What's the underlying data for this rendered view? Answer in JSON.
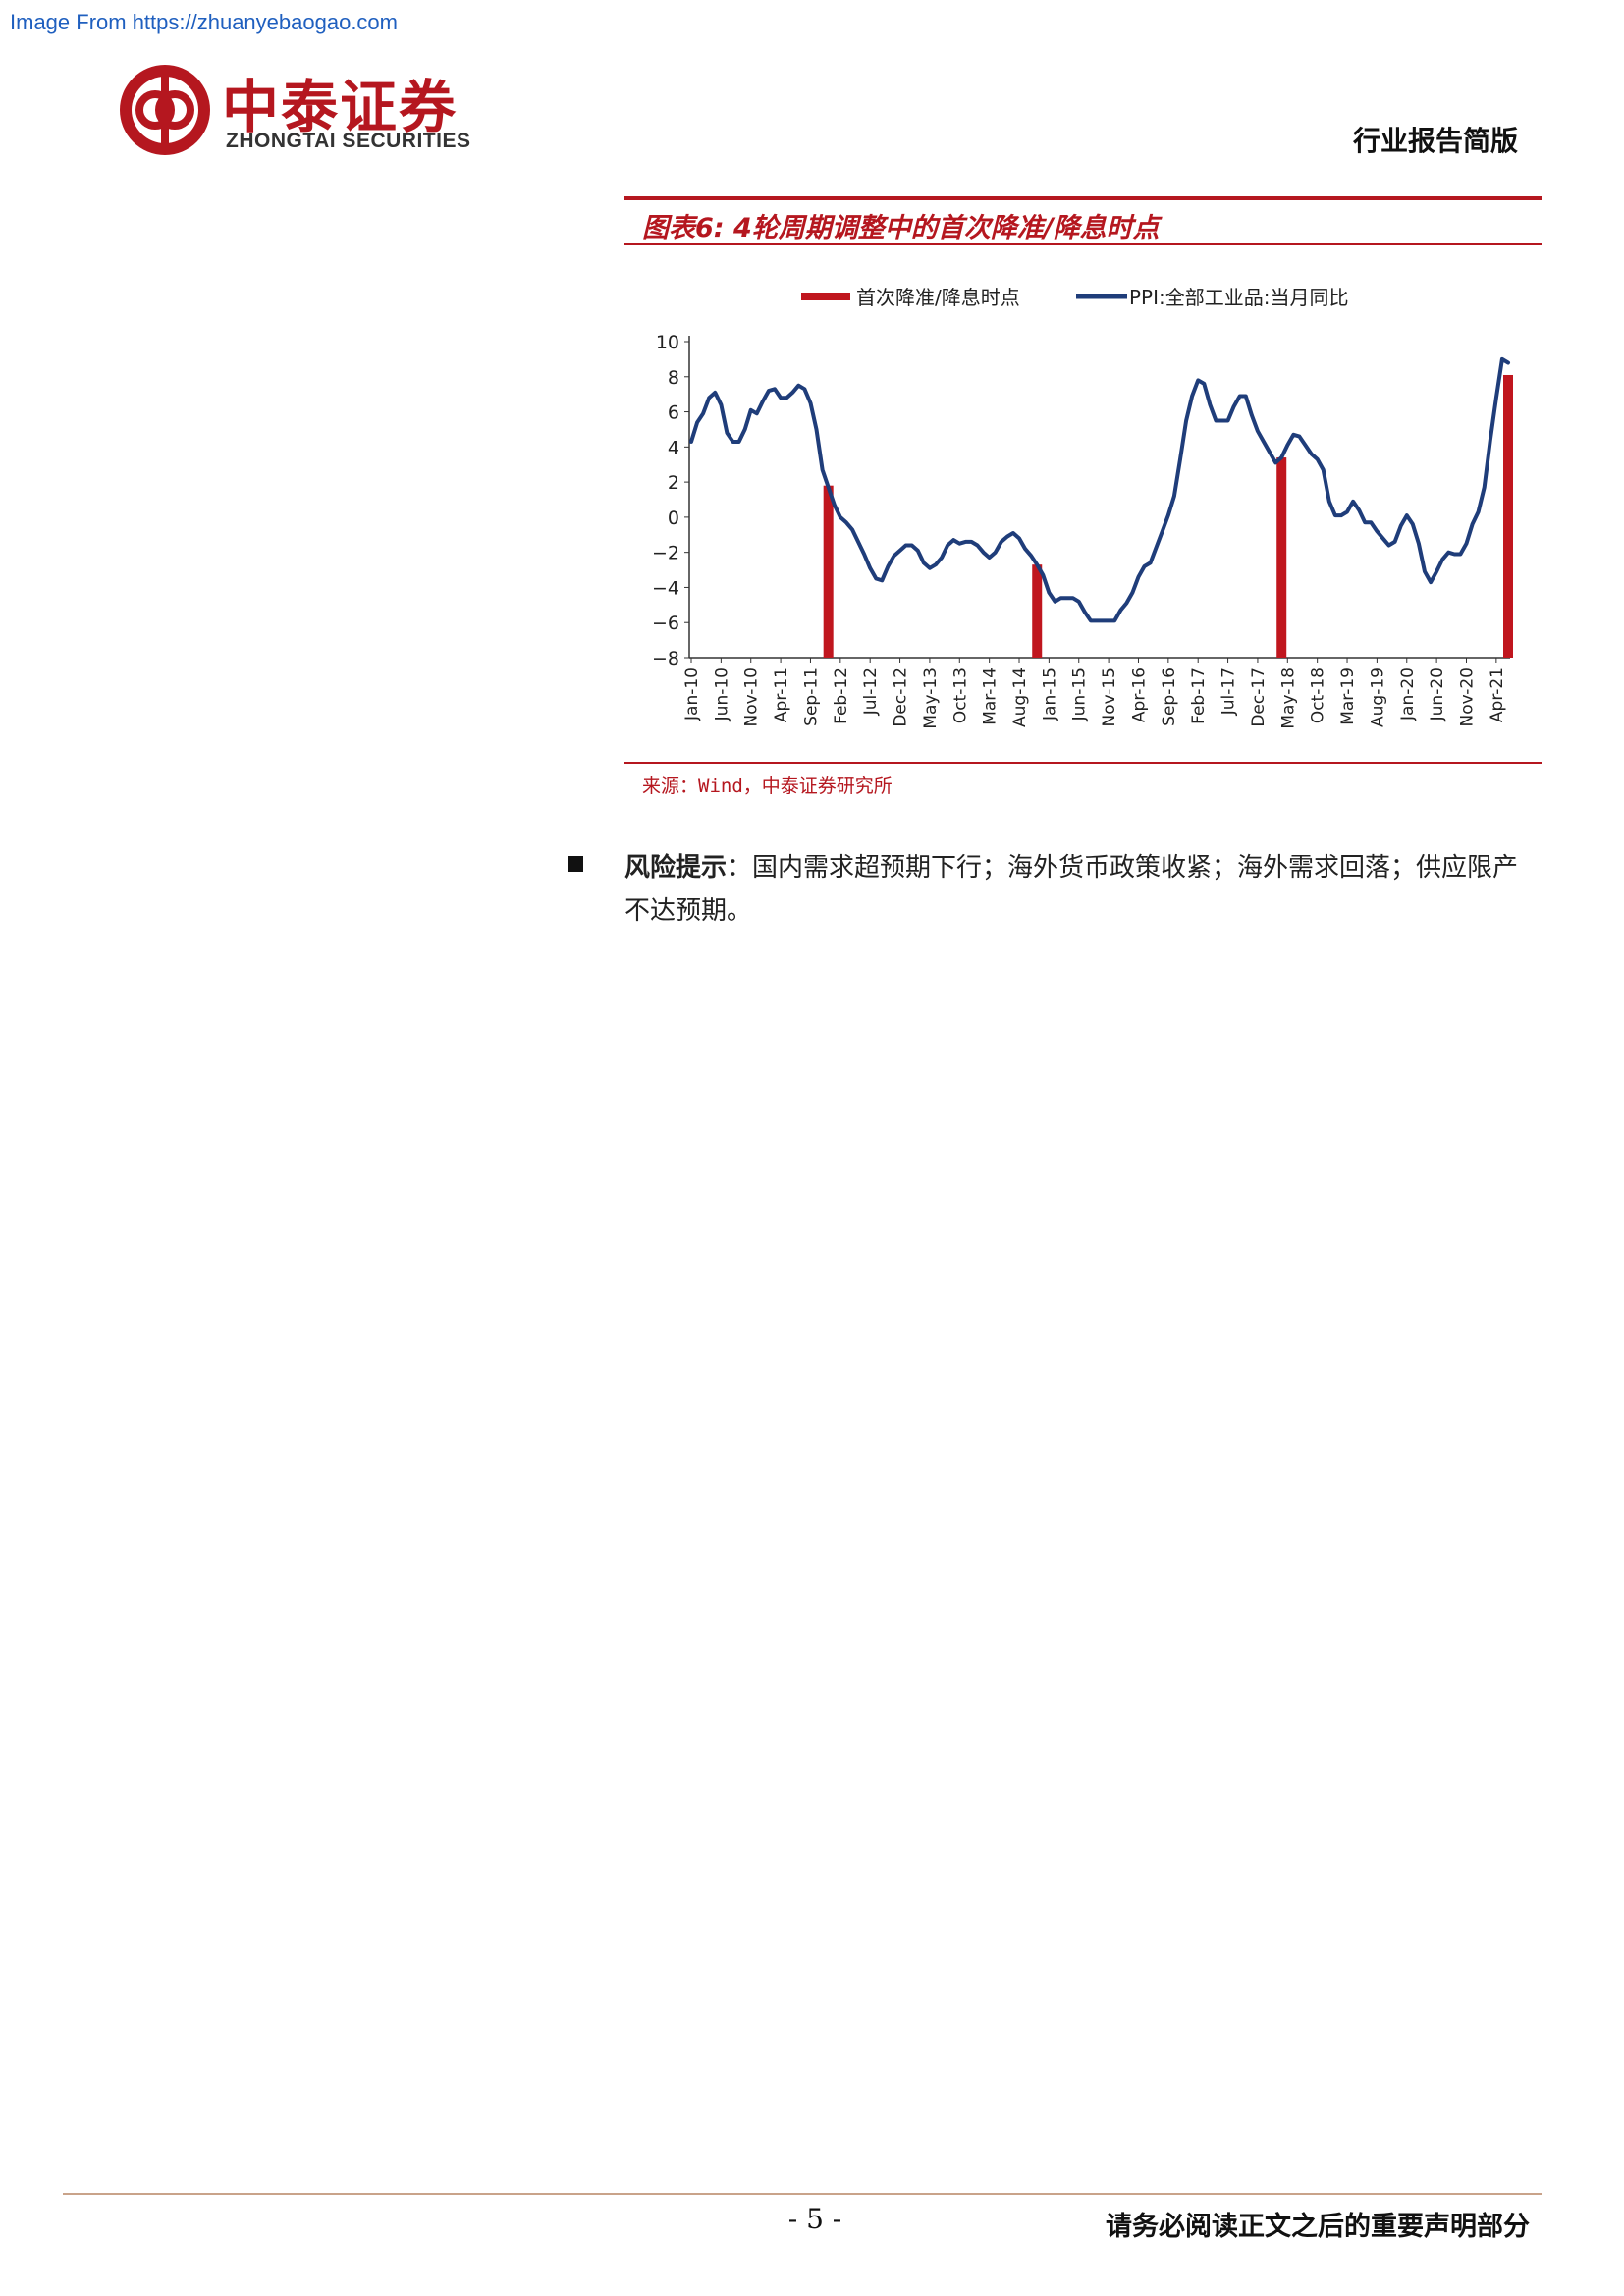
{
  "watermark": "Image From https://zhuanyebaogao.com",
  "header": {
    "company_cn": "中泰证券",
    "company_en": "ZHONGTAI SECURITIES",
    "doc_type": "行业报告简版",
    "logo_icon": "zhongtai-logo-icon",
    "brand_color": "#b5171f"
  },
  "figure": {
    "title": "图表6: 4轮周期调整中的首次降准/降息时点",
    "source": "来源：Wind，中泰证券研究所"
  },
  "chart_data": {
    "type": "line",
    "title": "",
    "legend": {
      "placement": "top",
      "entries": [
        "首次降准/降息时点",
        "PPI:全部工业品:当月同比"
      ]
    },
    "x_tick_labels": [
      "Jan-10",
      "Jun-10",
      "Nov-10",
      "Apr-11",
      "Sep-11",
      "Feb-12",
      "Jul-12",
      "Dec-12",
      "May-13",
      "Oct-13",
      "Mar-14",
      "Aug-14",
      "Jan-15",
      "Jun-15",
      "Nov-15",
      "Apr-16",
      "Sep-16",
      "Feb-17",
      "Jul-17",
      "Dec-17",
      "May-18",
      "Oct-18",
      "Mar-19",
      "Aug-19",
      "Jan-20",
      "Jun-20",
      "Nov-20",
      "Apr-21"
    ],
    "ylim": [
      -8,
      10
    ],
    "y_ticks": [
      -8,
      -6,
      -4,
      -2,
      0,
      2,
      4,
      6,
      8,
      10
    ],
    "grid": false,
    "series": [
      {
        "name": "PPI:全部工业品:当月同比",
        "type": "line",
        "color": "#1f3d7a",
        "x": [
          "Jan-10",
          "Feb-10",
          "Mar-10",
          "Apr-10",
          "May-10",
          "Jun-10",
          "Jul-10",
          "Aug-10",
          "Sep-10",
          "Oct-10",
          "Nov-10",
          "Dec-10",
          "Jan-11",
          "Feb-11",
          "Mar-11",
          "Apr-11",
          "May-11",
          "Jun-11",
          "Jul-11",
          "Aug-11",
          "Sep-11",
          "Oct-11",
          "Nov-11",
          "Dec-11",
          "Jan-12",
          "Feb-12",
          "Mar-12",
          "Apr-12",
          "May-12",
          "Jun-12",
          "Jul-12",
          "Aug-12",
          "Sep-12",
          "Oct-12",
          "Nov-12",
          "Dec-12",
          "Jan-13",
          "Feb-13",
          "Mar-13",
          "Apr-13",
          "May-13",
          "Jun-13",
          "Jul-13",
          "Aug-13",
          "Sep-13",
          "Oct-13",
          "Nov-13",
          "Dec-13",
          "Jan-14",
          "Feb-14",
          "Mar-14",
          "Apr-14",
          "May-14",
          "Jun-14",
          "Jul-14",
          "Aug-14",
          "Sep-14",
          "Oct-14",
          "Nov-14",
          "Dec-14",
          "Jan-15",
          "Feb-15",
          "Mar-15",
          "Apr-15",
          "May-15",
          "Jun-15",
          "Jul-15",
          "Aug-15",
          "Sep-15",
          "Oct-15",
          "Nov-15",
          "Dec-15",
          "Jan-16",
          "Feb-16",
          "Mar-16",
          "Apr-16",
          "May-16",
          "Jun-16",
          "Jul-16",
          "Aug-16",
          "Sep-16",
          "Oct-16",
          "Nov-16",
          "Dec-16",
          "Jan-17",
          "Feb-17",
          "Mar-17",
          "Apr-17",
          "May-17",
          "Jun-17",
          "Jul-17",
          "Aug-17",
          "Sep-17",
          "Oct-17",
          "Nov-17",
          "Dec-17",
          "Jan-18",
          "Feb-18",
          "Mar-18",
          "Apr-18",
          "May-18",
          "Jun-18",
          "Jul-18",
          "Aug-18",
          "Sep-18",
          "Oct-18",
          "Nov-18",
          "Dec-18",
          "Jan-19",
          "Feb-19",
          "Mar-19",
          "Apr-19",
          "May-19",
          "Jun-19",
          "Jul-19",
          "Aug-19",
          "Sep-19",
          "Oct-19",
          "Nov-19",
          "Dec-19",
          "Jan-20",
          "Feb-20",
          "Mar-20",
          "Apr-20",
          "May-20",
          "Jun-20",
          "Jul-20",
          "Aug-20",
          "Sep-20",
          "Oct-20",
          "Nov-20",
          "Dec-20",
          "Jan-21",
          "Feb-21",
          "Mar-21",
          "Apr-21",
          "May-21",
          "Jun-21"
        ],
        "values": [
          4.3,
          5.4,
          5.9,
          6.8,
          7.1,
          6.4,
          4.8,
          4.3,
          4.3,
          5.0,
          6.1,
          5.9,
          6.6,
          7.2,
          7.3,
          6.8,
          6.8,
          7.1,
          7.5,
          7.3,
          6.5,
          5.0,
          2.7,
          1.7,
          0.7,
          0.0,
          -0.3,
          -0.7,
          -1.4,
          -2.1,
          -2.9,
          -3.5,
          -3.6,
          -2.8,
          -2.2,
          -1.9,
          -1.6,
          -1.6,
          -1.9,
          -2.6,
          -2.9,
          -2.7,
          -2.3,
          -1.6,
          -1.3,
          -1.5,
          -1.4,
          -1.4,
          -1.6,
          -2.0,
          -2.3,
          -2.0,
          -1.4,
          -1.1,
          -0.9,
          -1.2,
          -1.8,
          -2.2,
          -2.7,
          -3.3,
          -4.3,
          -4.8,
          -4.6,
          -4.6,
          -4.6,
          -4.8,
          -5.4,
          -5.9,
          -5.9,
          -5.9,
          -5.9,
          -5.9,
          -5.3,
          -4.9,
          -4.3,
          -3.4,
          -2.8,
          -2.6,
          -1.7,
          -0.8,
          0.1,
          1.2,
          3.3,
          5.5,
          6.9,
          7.8,
          7.6,
          6.4,
          5.5,
          5.5,
          5.5,
          6.3,
          6.9,
          6.9,
          5.8,
          4.9,
          4.3,
          3.7,
          3.1,
          3.4,
          4.1,
          4.7,
          4.6,
          4.1,
          3.6,
          3.3,
          2.7,
          0.9,
          0.1,
          0.1,
          0.3,
          0.9,
          0.4,
          -0.3,
          -0.3,
          -0.8,
          -1.2,
          -1.6,
          -1.4,
          -0.5,
          0.1,
          -0.4,
          -1.5,
          -3.1,
          -3.7,
          -3.1,
          -2.4,
          -2.0,
          -2.1,
          -2.1,
          -1.5,
          -0.4,
          0.3,
          1.7,
          4.4,
          6.8,
          9.0,
          8.8
        ],
        "ylim": [
          -8,
          10
        ]
      },
      {
        "name": "首次降准/降息时点",
        "type": "bar",
        "color": "#c0161e",
        "x": [
          "Dec-11",
          "Nov-14",
          "Apr-18",
          "Jul-21"
        ],
        "values": [
          1.8,
          -2.7,
          3.4,
          8.1
        ]
      }
    ]
  },
  "risk": {
    "label": "风险提示",
    "text": "：国内需求超预期下行；海外货币政策收紧；海外需求回落；供应限产不达预期。"
  },
  "footer": {
    "page": "- 5 -",
    "disclaimer": "请务必阅读正文之后的重要声明部分"
  }
}
